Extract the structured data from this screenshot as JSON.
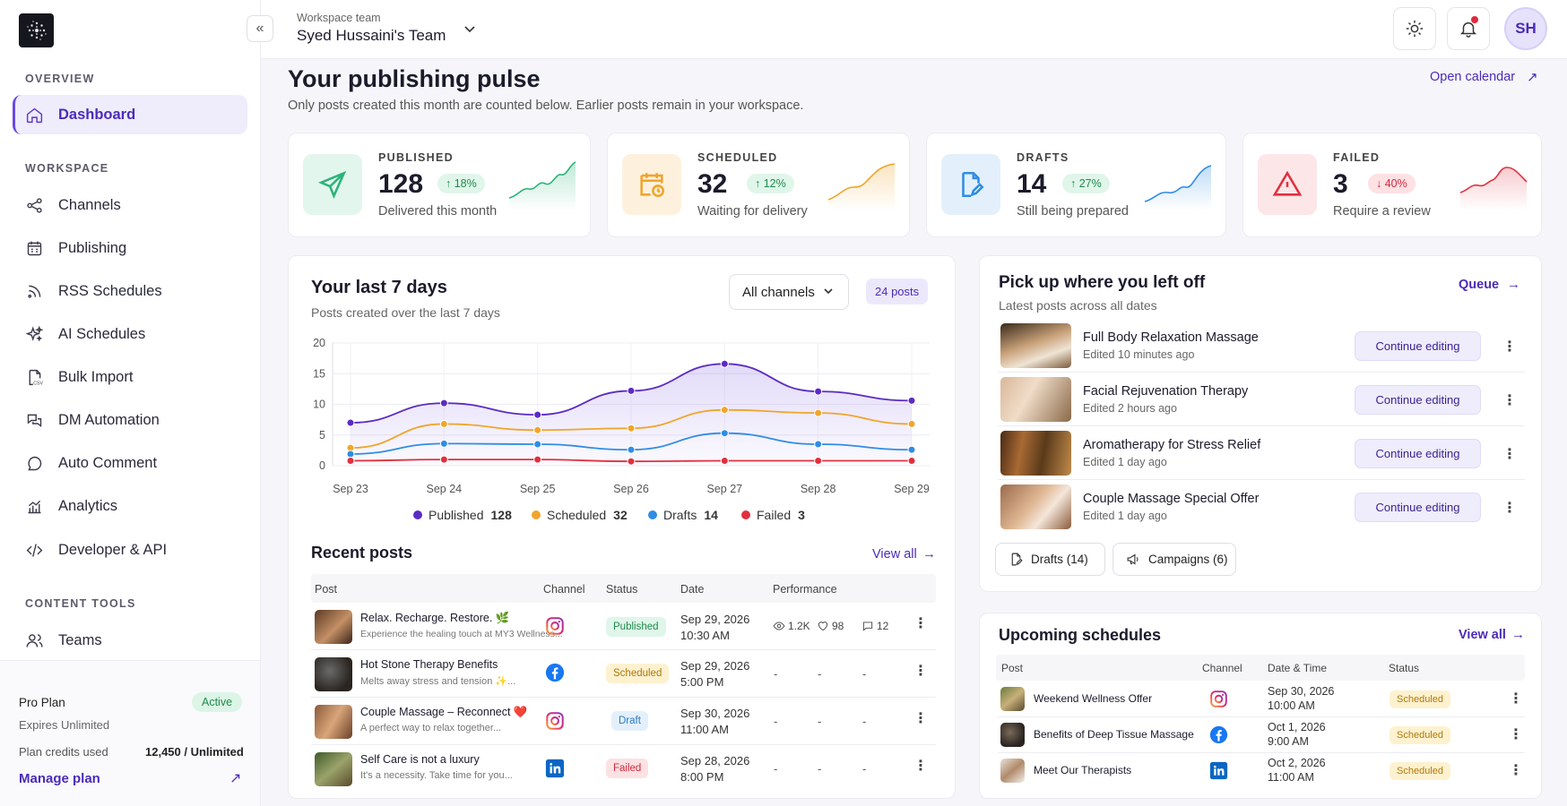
{
  "sidebar": {
    "sections": {
      "overview": "OVERVIEW",
      "workspace": "WORKSPACE",
      "content_tools": "CONTENT TOOLS"
    },
    "items": [
      {
        "label": "Dashboard",
        "icon": "home-icon"
      },
      {
        "label": "Channels",
        "icon": "share-icon"
      },
      {
        "label": "Publishing",
        "icon": "calendar-grid-icon"
      },
      {
        "label": "RSS Schedules",
        "icon": "rss-icon"
      },
      {
        "label": "AI Schedules",
        "icon": "sparkles-icon"
      },
      {
        "label": "Bulk Import",
        "icon": "csv-file-icon"
      },
      {
        "label": "DM Automation",
        "icon": "chat-bubbles-icon"
      },
      {
        "label": "Auto Comment",
        "icon": "comment-dots-icon"
      },
      {
        "label": "Analytics",
        "icon": "bar-chart-icon"
      },
      {
        "label": "Developer & API",
        "icon": "code-icon"
      },
      {
        "label": "Teams",
        "icon": "users-icon"
      }
    ],
    "plan": {
      "name": "Pro Plan",
      "status": "Active",
      "expires": "Expires Unlimited",
      "credits_label": "Plan credits used",
      "credits_value": "12,450 / Unlimited",
      "manage": "Manage plan"
    }
  },
  "topbar": {
    "workspace_label": "Workspace team",
    "workspace_name": "Syed Hussaini's Team",
    "avatar": "SH"
  },
  "header": {
    "title": "Your publishing pulse",
    "subtitle": "Only posts created this month are counted below. Earlier posts remain in your workspace.",
    "open_calendar": "Open calendar"
  },
  "stats": [
    {
      "label": "PUBLISHED",
      "value": "128",
      "delta": "18%",
      "direction": "up",
      "desc": "Delivered this month",
      "color": "#2bb37a",
      "icon": "send-icon"
    },
    {
      "label": "SCHEDULED",
      "value": "32",
      "delta": "12%",
      "direction": "up",
      "desc": "Waiting for delivery",
      "color": "#f0a52b",
      "icon": "calendar-clock-icon"
    },
    {
      "label": "DRAFTS",
      "value": "14",
      "delta": "27%",
      "direction": "up",
      "desc": "Still being prepared",
      "color": "#2f8de4",
      "icon": "file-edit-icon"
    },
    {
      "label": "FAILED",
      "value": "3",
      "delta": "40%",
      "direction": "down",
      "desc": "Require a review",
      "color": "#e0303e",
      "icon": "warning-icon"
    }
  ],
  "last7": {
    "title": "Your last 7 days",
    "subtitle": "Posts created over the last 7 days",
    "filter": "All channels",
    "count": "24 posts"
  },
  "chart_data": {
    "type": "line",
    "categories": [
      "Sep 23",
      "Sep 24",
      "Sep 25",
      "Sep 26",
      "Sep 27",
      "Sep 28",
      "Sep 29"
    ],
    "ylim": [
      0,
      20
    ],
    "yticks": [
      0,
      5,
      10,
      15,
      20
    ],
    "grid": true,
    "legend_position": "bottom",
    "series": [
      {
        "name": "Published",
        "total": "128",
        "color": "#5b2bc4",
        "values": [
          7,
          10.2,
          8.3,
          12.2,
          16.6,
          12.1,
          10.6
        ]
      },
      {
        "name": "Scheduled",
        "total": "32",
        "color": "#f0a52b",
        "values": [
          2.9,
          6.8,
          5.8,
          6.1,
          9.1,
          8.6,
          6.8
        ]
      },
      {
        "name": "Drafts",
        "total": "14",
        "color": "#2f8de4",
        "values": [
          1.9,
          3.6,
          3.5,
          2.6,
          5.3,
          3.5,
          2.6
        ]
      },
      {
        "name": "Failed",
        "total": "3",
        "color": "#e0303e",
        "values": [
          0.8,
          1.0,
          1.0,
          0.7,
          0.8,
          0.8,
          0.8
        ]
      }
    ]
  },
  "recent": {
    "title": "Recent posts",
    "view_all": "View all",
    "headers": [
      "Post",
      "Channel",
      "Status",
      "Date",
      "Performance"
    ],
    "rows": [
      {
        "title": "Relax. Recharge. Restore. 🌿",
        "excerpt": "Experience the healing touch at MY3 Wellness...",
        "channel": "instagram-icon",
        "status": "Published",
        "date": "Sep 29, 2026",
        "time": "10:30 AM",
        "views": "1.2K",
        "likes": "98",
        "comments": "12"
      },
      {
        "title": "Hot Stone Therapy Benefits",
        "excerpt": "Melts away stress and tension ✨...",
        "channel": "facebook-icon",
        "status": "Scheduled",
        "date": "Sep 29, 2026",
        "time": "5:00 PM",
        "views": "-",
        "likes": "-",
        "comments": "-"
      },
      {
        "title": "Couple Massage – Reconnect ❤️",
        "excerpt": "A perfect way to relax together...",
        "channel": "instagram-icon",
        "status": "Draft",
        "date": "Sep 30, 2026",
        "time": "11:00 AM",
        "views": "-",
        "likes": "-",
        "comments": "-"
      },
      {
        "title": "Self Care is not a luxury",
        "excerpt": "It's a necessity. Take time for you...",
        "channel": "linkedin-icon",
        "status": "Failed",
        "date": "Sep 28, 2026",
        "time": "8:00 PM",
        "views": "-",
        "likes": "-",
        "comments": "-"
      }
    ]
  },
  "pickup": {
    "title": "Pick up where you left off",
    "subtitle": "Latest posts across all dates",
    "queue": "Queue",
    "button": "Continue editing",
    "items": [
      {
        "title": "Full Body Relaxation Massage",
        "edited": "Edited 10 minutes ago"
      },
      {
        "title": "Facial Rejuvenation Therapy",
        "edited": "Edited 2 hours ago"
      },
      {
        "title": "Aromatherapy for Stress Relief",
        "edited": "Edited 1 day ago"
      },
      {
        "title": "Couple Massage Special Offer",
        "edited": "Edited 1 day ago"
      }
    ],
    "chips": [
      "Drafts (14)",
      "Campaigns (6)"
    ]
  },
  "upcoming": {
    "title": "Upcoming schedules",
    "view_all": "View all",
    "headers": [
      "Post",
      "Channel",
      "Date & Time",
      "Status"
    ],
    "rows": [
      {
        "title": "Weekend Wellness Offer",
        "channel": "instagram-icon",
        "date": "Sep 30, 2026",
        "time": "10:00 AM",
        "status": "Scheduled"
      },
      {
        "title": "Benefits of Deep Tissue Massage",
        "channel": "facebook-icon",
        "date": "Oct 1, 2026",
        "time": "9:00 AM",
        "status": "Scheduled"
      },
      {
        "title": "Meet Our Therapists",
        "channel": "linkedin-icon",
        "date": "Oct 2, 2026",
        "time": "11:00 AM",
        "status": "Scheduled"
      }
    ]
  }
}
